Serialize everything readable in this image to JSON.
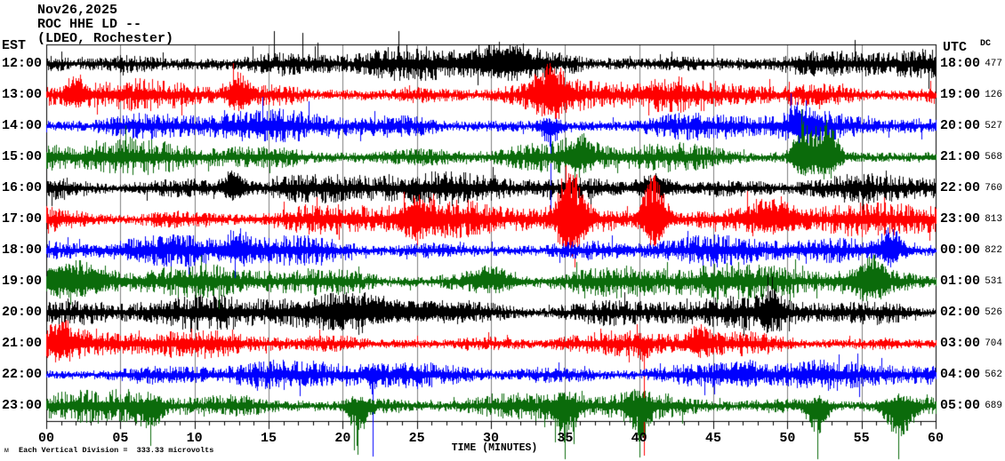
{
  "header": {
    "date": "Nov26,2025",
    "station": "ROC HHE LD --",
    "location": "(LDEO, Rochester)"
  },
  "axes": {
    "left_label": "EST",
    "right_label": "UTC",
    "dc_label": "DC",
    "x_label": "TIME (MINUTES)"
  },
  "footer": {
    "caption": "Each Vertical Division =  333.33 microvolts",
    "watermark": "м"
  },
  "chart_data": {
    "type": "line",
    "subtype": "helicorder-seismogram",
    "title": "Nov26,2025 ROC HHE LD -- (LDEO, Rochester)",
    "xlabel": "TIME (MINUTES)",
    "x_range_minutes": [
      0,
      60
    ],
    "x_ticks": [
      "00",
      "05",
      "10",
      "15",
      "20",
      "25",
      "30",
      "35",
      "40",
      "45",
      "50",
      "55",
      "60"
    ],
    "x_minor_tick_minutes": 1,
    "grid": "vertical gray lines every 5 minutes",
    "microvolts_per_division": 333.33,
    "colors": {
      "trace_cycle": [
        "#000000",
        "#ff0000",
        "#0000ff",
        "#0b6b0b"
      ],
      "grid": "#7f7f7f",
      "frame": "#000000",
      "text": "#000000"
    },
    "rows": [
      {
        "est": "12:00",
        "utc": "18:00",
        "dc": 477,
        "color": "#000000",
        "amp": 16,
        "tall": true,
        "events": [
          {
            "m": 30.5,
            "h": 14,
            "w": 1.5
          }
        ]
      },
      {
        "est": "13:00",
        "utc": "19:00",
        "dc": 126,
        "color": "#ff0000",
        "amp": 14,
        "events": [
          {
            "m": 2,
            "h": 14,
            "w": 0.5
          },
          {
            "m": 13,
            "h": 20,
            "w": 0.5
          },
          {
            "m": 34,
            "h": 24,
            "w": 0.8
          }
        ]
      },
      {
        "est": "14:00",
        "utc": "20:00",
        "dc": 527,
        "color": "#0000ff",
        "amp": 14,
        "events": [
          {
            "m": 34,
            "h": 16,
            "w": 0.4,
            "dir": "down",
            "spike": 110
          },
          {
            "m": 51,
            "h": 12,
            "w": 0.6
          }
        ]
      },
      {
        "est": "15:00",
        "utc": "21:00",
        "dc": 568,
        "color": "#0b6b0b",
        "amp": 13,
        "events": [
          {
            "m": 36,
            "h": 14,
            "w": 0.7
          },
          {
            "m": 51,
            "h": 30,
            "w": 0.5
          },
          {
            "m": 52.6,
            "h": 36,
            "w": 0.6
          }
        ]
      },
      {
        "est": "16:00",
        "utc": "22:00",
        "dc": 760,
        "color": "#000000",
        "amp": 13,
        "events": [
          {
            "m": 12.6,
            "h": 16,
            "w": 0.5
          },
          {
            "m": 41,
            "h": 12,
            "w": 1.0
          }
        ]
      },
      {
        "est": "17:00",
        "utc": "23:00",
        "dc": 813,
        "color": "#ff0000",
        "amp": 14,
        "events": [
          {
            "m": 25,
            "h": 14,
            "w": 0.8
          },
          {
            "m": 35.3,
            "h": 50,
            "w": 0.6
          },
          {
            "m": 41,
            "h": 46,
            "w": 0.6
          },
          {
            "m": 49,
            "h": 18,
            "w": 1.2
          }
        ]
      },
      {
        "est": "18:00",
        "utc": "00:00",
        "dc": 822,
        "color": "#0000ff",
        "amp": 14,
        "events": [
          {
            "m": 13,
            "h": 12,
            "w": 0.6
          },
          {
            "m": 57,
            "h": 20,
            "w": 0.6
          }
        ]
      },
      {
        "est": "19:00",
        "utc": "01:00",
        "dc": 531,
        "color": "#0b6b0b",
        "amp": 14,
        "events": [
          {
            "m": 1.5,
            "h": 14,
            "w": 1.8
          },
          {
            "m": 30,
            "h": 10,
            "w": 1.0
          },
          {
            "m": 55.5,
            "h": 18,
            "w": 0.7
          }
        ]
      },
      {
        "est": "20:00",
        "utc": "02:00",
        "dc": 526,
        "color": "#000000",
        "amp": 13,
        "events": [
          {
            "m": 23,
            "h": 11,
            "w": 3.5
          },
          {
            "m": 49,
            "h": 14,
            "w": 0.5
          }
        ]
      },
      {
        "est": "21:00",
        "utc": "03:00",
        "dc": 704,
        "color": "#ff0000",
        "amp": 12,
        "events": [
          {
            "m": 1,
            "h": 18,
            "w": 0.6
          },
          {
            "m": 40.3,
            "h": 8,
            "w": 0.3,
            "dir": "down",
            "spike": 126
          },
          {
            "m": 44,
            "h": 12,
            "w": 0.6
          }
        ]
      },
      {
        "est": "22:00",
        "utc": "04:00",
        "dc": 562,
        "color": "#0000ff",
        "amp": 11,
        "events": [
          {
            "m": 22,
            "h": 10,
            "w": 0.3,
            "dir": "down",
            "spike": 92
          },
          {
            "m": 47,
            "h": 9,
            "w": 0.8
          }
        ]
      },
      {
        "est": "23:00",
        "utc": "05:00",
        "dc": 689,
        "color": "#0b6b0b",
        "amp": 13,
        "events": [
          {
            "m": 7,
            "h": 18,
            "w": 0.5,
            "dir": "down",
            "spike": 45
          },
          {
            "m": 21,
            "h": 24,
            "w": 0.5,
            "dir": "down",
            "spike": 55
          },
          {
            "m": 35,
            "h": 28,
            "w": 0.6,
            "dir": "down",
            "spike": 60
          },
          {
            "m": 40,
            "h": 26,
            "w": 0.5,
            "dir": "down",
            "spike": 58
          },
          {
            "m": 52,
            "h": 28,
            "w": 0.5,
            "dir": "down",
            "spike": 60
          },
          {
            "m": 57.5,
            "h": 32,
            "w": 0.7,
            "dir": "down",
            "spike": 62
          }
        ]
      }
    ]
  }
}
